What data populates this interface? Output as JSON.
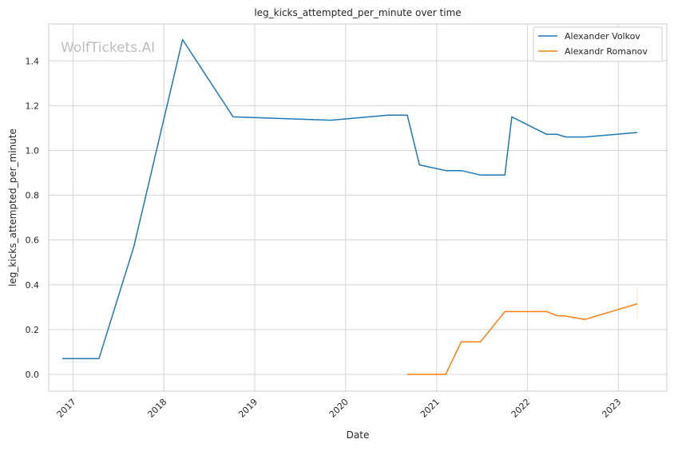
{
  "chart_data": {
    "type": "line",
    "title": "leg_kicks_attempted_per_minute over time",
    "xlabel": "Date",
    "ylabel": "leg_kicks_attempted_per_minute",
    "watermark": "WolfTickets.AI",
    "x_axis_kind": "date",
    "xlim": [
      "2016-09-25",
      "2023-07-15"
    ],
    "ylim": [
      -0.075,
      1.565
    ],
    "x_ticks": [
      "2017-01-01",
      "2018-01-01",
      "2019-01-01",
      "2020-01-01",
      "2021-01-01",
      "2022-01-01",
      "2023-01-01"
    ],
    "x_tick_labels": [
      "2017",
      "2018",
      "2019",
      "2020",
      "2021",
      "2022",
      "2023"
    ],
    "y_ticks": [
      0.0,
      0.2,
      0.4,
      0.6,
      0.8,
      1.0,
      1.2,
      1.4
    ],
    "y_tick_labels": [
      "0.0",
      "0.2",
      "0.4",
      "0.6",
      "0.8",
      "1.0",
      "1.2",
      "1.4"
    ],
    "grid": true,
    "legend_position": "top-right",
    "series": [
      {
        "name": "Alexander Volkov",
        "color": "#1f77b4",
        "points": [
          [
            "2016-11-19",
            0.07
          ],
          [
            "2017-04-15",
            0.07
          ],
          [
            "2017-09-02",
            0.57
          ],
          [
            "2018-03-17",
            1.495
          ],
          [
            "2018-10-06",
            1.15
          ],
          [
            "2019-11-02",
            1.135
          ],
          [
            "2020-06-20",
            1.158
          ],
          [
            "2020-09-05",
            1.158
          ],
          [
            "2020-10-24",
            0.935
          ],
          [
            "2020-11-07",
            0.932
          ],
          [
            "2021-02-06",
            0.91
          ],
          [
            "2021-04-10",
            0.91
          ],
          [
            "2021-06-26",
            0.89
          ],
          [
            "2021-10-02",
            0.89
          ],
          [
            "2021-10-30",
            1.15
          ],
          [
            "2022-03-19",
            1.072
          ],
          [
            "2022-04-30",
            1.072
          ],
          [
            "2022-06-04",
            1.06
          ],
          [
            "2022-08-20",
            1.06
          ],
          [
            "2023-03-18",
            1.08
          ]
        ]
      },
      {
        "name": "Alexandr Romanov",
        "color": "#ff7f0e",
        "points": [
          [
            "2020-09-05",
            0.0
          ],
          [
            "2021-02-06",
            0.0
          ],
          [
            "2021-04-10",
            0.145
          ],
          [
            "2021-06-26",
            0.145
          ],
          [
            "2021-10-02",
            0.28
          ],
          [
            "2022-03-19",
            0.28
          ],
          [
            "2022-04-30",
            0.262
          ],
          [
            "2022-06-04",
            0.26
          ],
          [
            "2022-08-20",
            0.245
          ],
          [
            "2023-03-18",
            0.315
          ]
        ]
      }
    ]
  }
}
